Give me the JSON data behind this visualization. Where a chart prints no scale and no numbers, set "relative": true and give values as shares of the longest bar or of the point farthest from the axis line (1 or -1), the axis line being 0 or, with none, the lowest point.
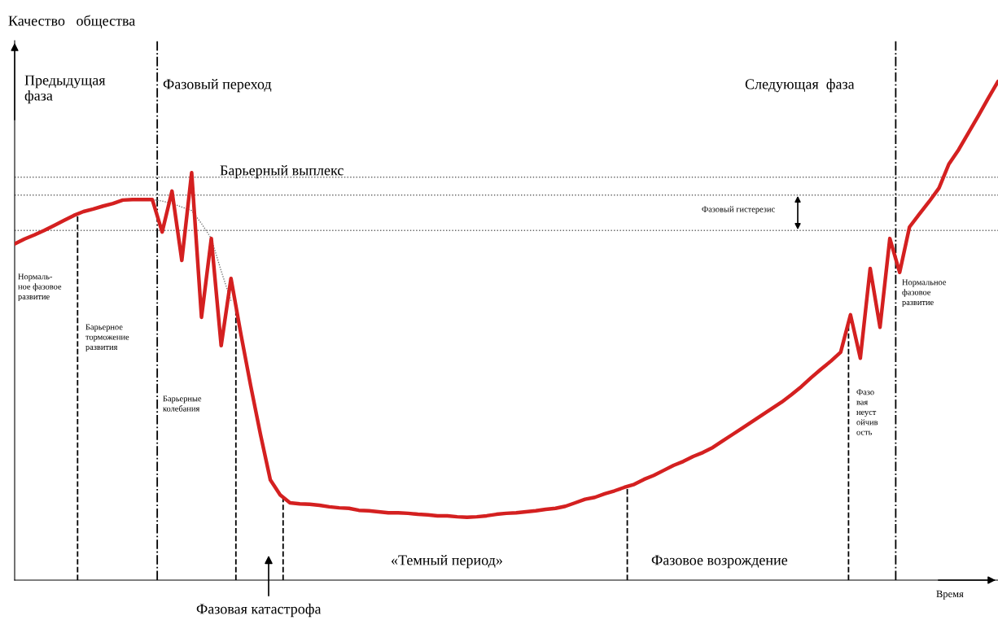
{
  "chart_data": {
    "type": "line",
    "relative": true,
    "xlabel": "Время",
    "ylabel": "Качество   общества",
    "categories": [
      null,
      null,
      null,
      null,
      null,
      null,
      null,
      null,
      null,
      null,
      null,
      null,
      null,
      null,
      null,
      null,
      null,
      null,
      null,
      null,
      null,
      null,
      null,
      null,
      null,
      null,
      null,
      null,
      null,
      null,
      null,
      null,
      null,
      null,
      null,
      null,
      null,
      null,
      null,
      null,
      null,
      null,
      null,
      null,
      null,
      null,
      null,
      null,
      null,
      null,
      null,
      null,
      null,
      null,
      null,
      null,
      null,
      null,
      null,
      null,
      null,
      null,
      null,
      null,
      null,
      null,
      null,
      null,
      null,
      null,
      null,
      null,
      null,
      null,
      null,
      null,
      null,
      null,
      null,
      null,
      null,
      null,
      null,
      null,
      null,
      null,
      null,
      null,
      null,
      null,
      null,
      null,
      null,
      null,
      null,
      null,
      null,
      null,
      null,
      null,
      null
    ],
    "marker": "none",
    "line_style": "solid",
    "series": [
      {
        "color": "#d42020",
        "values": [
          0.674,
          0.684,
          0.692,
          0.701,
          0.711,
          0.721,
          0.731,
          0.739,
          0.744,
          0.75,
          0.755,
          0.762,
          0.763,
          0.763,
          0.763,
          0.698,
          0.78,
          0.641,
          0.817,
          0.527,
          0.685,
          0.47,
          0.605,
          0.494,
          0.39,
          0.292,
          0.201,
          0.171,
          0.155,
          0.153,
          0.152,
          0.15,
          0.147,
          0.145,
          0.144,
          0.14,
          0.139,
          0.137,
          0.135,
          0.135,
          0.134,
          0.132,
          0.131,
          0.129,
          0.129,
          0.127,
          0.126,
          0.127,
          0.129,
          0.132,
          0.134,
          0.135,
          0.137,
          0.139,
          0.142,
          0.144,
          0.148,
          0.155,
          0.162,
          0.166,
          0.173,
          0.179,
          0.186,
          0.192,
          0.202,
          0.21,
          0.22,
          0.23,
          0.238,
          0.248,
          0.256,
          0.266,
          0.279,
          0.292,
          0.305,
          0.318,
          0.331,
          0.344,
          0.357,
          0.372,
          0.388,
          0.406,
          0.423,
          0.439,
          0.457,
          0.532,
          0.445,
          0.625,
          0.507,
          0.685,
          0.617,
          0.708,
          0.734,
          0.759,
          0.786,
          0.834,
          0.863,
          0.897,
          0.931,
          0.966,
          1.0
        ]
      },
      {
        "color": "#777777",
        "line_style": "dotted",
        "values": [
          null,
          null,
          null,
          null,
          null,
          null,
          null,
          null,
          null,
          null,
          null,
          null,
          null,
          null,
          0.763,
          0.76,
          0.755,
          0.748,
          0.741,
          0.715,
          0.685,
          0.62,
          0.56,
          null,
          null,
          null,
          null,
          null,
          null,
          null,
          null,
          null,
          null,
          null,
          null,
          null,
          null,
          null,
          null,
          null,
          null,
          null,
          null,
          null,
          null,
          null,
          null,
          null,
          null,
          null,
          null,
          null,
          null,
          null,
          null,
          null,
          null,
          null,
          null,
          null,
          null,
          null,
          null,
          null,
          null,
          null,
          null,
          null,
          null,
          null,
          null,
          null,
          null,
          null,
          null,
          null,
          null,
          null,
          null,
          null,
          null,
          null,
          null,
          null,
          null,
          null,
          null,
          null,
          null,
          null,
          null,
          null,
          null,
          null,
          null,
          null,
          null,
          null,
          null,
          null,
          null
        ]
      }
    ],
    "ref_lines": [
      {
        "axis": "y",
        "value": 0.808,
        "line_style": "dotted",
        "color": "#666666"
      },
      {
        "axis": "y",
        "value": 0.772,
        "line_style": "dotted",
        "color": "#666666"
      },
      {
        "axis": "y",
        "value": 0.701,
        "line_style": "dotted",
        "color": "#666666"
      }
    ],
    "annotations": [
      "Предыдущая\nфаза",
      "Фазовый переход",
      "Следующая  фаза",
      "Барьерный выплекс",
      "Фазовый гистерезис",
      "Нормаль-\nное фазовое\nразвитие",
      "Барьерное\nторможение\nразвития",
      "Барьерные\nколебания",
      "Фазо\nвая\nнеуст\nойчив\nость",
      "Нормальное\nфазовое\nразвитие",
      "«Темный период»",
      "Фазовое возрождение",
      "Фазовая катастрофа"
    ]
  }
}
